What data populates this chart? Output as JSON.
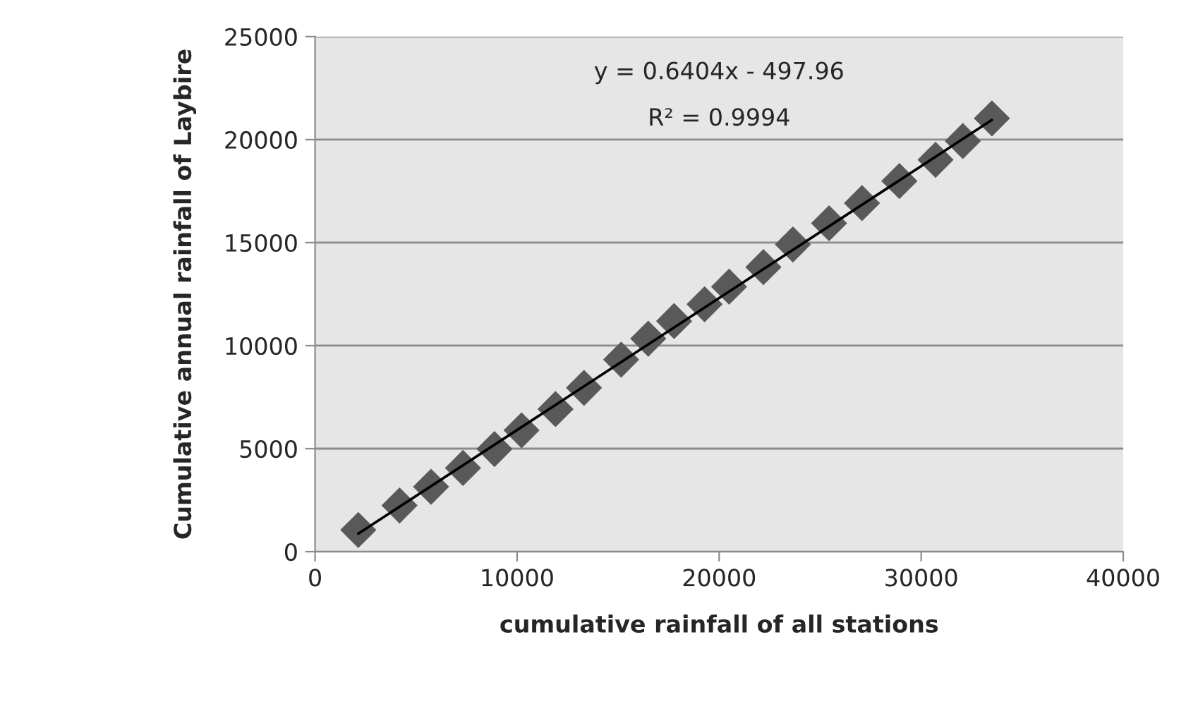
{
  "chart_data": {
    "type": "scatter",
    "xlabel": "cumulative rainfall of all stations",
    "ylabel": "Cumulative annual rainfall of Laybire",
    "annotations": [
      "y = 0.6404x - 497.96",
      "R² = 0.9994"
    ],
    "series": [
      {
        "color": "#595959",
        "marker": "diamond",
        "x": [
          2140,
          4180,
          5740,
          7320,
          8880,
          10220,
          11900,
          13310,
          15150,
          16490,
          17770,
          19280,
          20490,
          22190,
          23650,
          25440,
          27070,
          28920,
          30710,
          32060,
          33500
        ],
        "values": [
          1050,
          2240,
          3150,
          4060,
          4980,
          5890,
          6920,
          7950,
          9320,
          10340,
          11190,
          12010,
          12860,
          13810,
          14910,
          15940,
          16920,
          17990,
          19020,
          19930,
          21030
        ]
      },
      {
        "type": "line",
        "color": "#000000",
        "marker": "none",
        "line_style": "solid",
        "x": [
          2140,
          33500
        ],
        "values": [
          872,
          20955
        ]
      }
    ],
    "xlim": [
      0,
      40000
    ],
    "ylim": [
      0,
      25000
    ],
    "xticks": [
      0,
      10000,
      20000,
      30000,
      40000
    ],
    "yticks": [
      0,
      5000,
      10000,
      15000,
      20000,
      25000
    ],
    "grid": "y",
    "legend": false
  }
}
